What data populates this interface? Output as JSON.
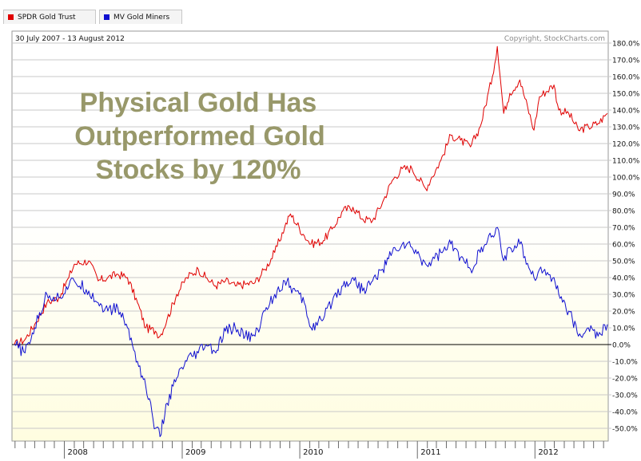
{
  "legend": [
    {
      "label": "SPDR Gold Trust",
      "color": "#e00000"
    },
    {
      "label": "MV Gold Miners",
      "color": "#1010d0"
    }
  ],
  "date_range": "30 July 2007 - 13 August 2012",
  "copyright": "Copyright, StockCharts.com",
  "annotation": [
    "Physical Gold Has",
    "Outperformed Gold",
    "Stocks by 120%"
  ],
  "colors": {
    "annotation": "#98986a",
    "plot_bg_top": "#ffffff",
    "plot_bg_bottom": "#fffde0",
    "grid": "#c8c8c8",
    "zero_line": "#000000"
  },
  "chart_data": {
    "type": "line",
    "title": "",
    "xlabel": "",
    "ylabel": "",
    "ylim": [
      -55,
      183
    ],
    "grid": true,
    "legend_position": "top-left",
    "x_ticks": [
      "2008",
      "2009",
      "2010",
      "2011",
      "2012"
    ],
    "y_ticks": [
      "180.0%",
      "170.0%",
      "160.0%",
      "150.0%",
      "140.0%",
      "130.0%",
      "120.0%",
      "110.0%",
      "100.0%",
      "90.0%",
      "80.0%",
      "70.0%",
      "60.0%",
      "50.0%",
      "40.0%",
      "30.0%",
      "20.0%",
      "10.0%",
      "0.0%",
      "-10.0%",
      "-20.0%",
      "-30.0%",
      "-40.0%",
      "-50.0%"
    ],
    "x": [
      "2007-07-30",
      "2007-09-01",
      "2007-10-01",
      "2007-11-08",
      "2007-12-15",
      "2008-01-15",
      "2008-02-01",
      "2008-03-17",
      "2008-04-15",
      "2008-05-15",
      "2008-06-15",
      "2008-07-15",
      "2008-08-15",
      "2008-09-10",
      "2008-10-10",
      "2008-10-24",
      "2008-11-15",
      "2008-12-15",
      "2009-01-15",
      "2009-02-20",
      "2009-03-15",
      "2009-04-15",
      "2009-05-15",
      "2009-06-15",
      "2009-07-15",
      "2009-08-15",
      "2009-09-15",
      "2009-10-15",
      "2009-11-15",
      "2009-12-03",
      "2010-01-15",
      "2010-02-05",
      "2010-03-15",
      "2010-04-15",
      "2010-05-15",
      "2010-06-15",
      "2010-07-15",
      "2010-08-15",
      "2010-09-15",
      "2010-10-15",
      "2010-11-15",
      "2010-12-15",
      "2011-01-27",
      "2011-02-15",
      "2011-03-15",
      "2011-04-15",
      "2011-05-15",
      "2011-06-15",
      "2011-07-15",
      "2011-08-22",
      "2011-09-06",
      "2011-09-26",
      "2011-10-15",
      "2011-11-15",
      "2011-12-29",
      "2012-01-15",
      "2012-02-29",
      "2012-03-15",
      "2012-04-15",
      "2012-05-15",
      "2012-06-15",
      "2012-07-15",
      "2012-08-13"
    ],
    "series": [
      {
        "name": "SPDR Gold Trust",
        "color": "#e00000",
        "values": [
          0,
          3,
          12,
          25,
          28,
          40,
          48,
          50,
          38,
          40,
          42,
          40,
          25,
          10,
          8,
          5,
          15,
          30,
          40,
          45,
          40,
          35,
          38,
          35,
          36,
          37,
          45,
          55,
          70,
          78,
          65,
          60,
          62,
          70,
          80,
          82,
          75,
          74,
          85,
          98,
          105,
          105,
          93,
          100,
          110,
          125,
          122,
          118,
          130,
          160,
          178,
          138,
          150,
          158,
          128,
          148,
          155,
          140,
          138,
          128,
          130,
          132,
          138
        ]
      },
      {
        "name": "MV Gold Miners",
        "color": "#1010d0",
        "values": [
          0,
          -5,
          10,
          30,
          28,
          35,
          38,
          32,
          25,
          20,
          22,
          10,
          -10,
          -25,
          -50,
          -55,
          -35,
          -20,
          -10,
          -5,
          0,
          -5,
          8,
          10,
          5,
          5,
          20,
          30,
          38,
          35,
          25,
          10,
          15,
          28,
          35,
          40,
          32,
          38,
          45,
          55,
          60,
          58,
          48,
          50,
          55,
          60,
          52,
          45,
          55,
          65,
          70,
          50,
          58,
          60,
          40,
          45,
          40,
          30,
          20,
          5,
          10,
          5,
          12
        ]
      }
    ]
  }
}
